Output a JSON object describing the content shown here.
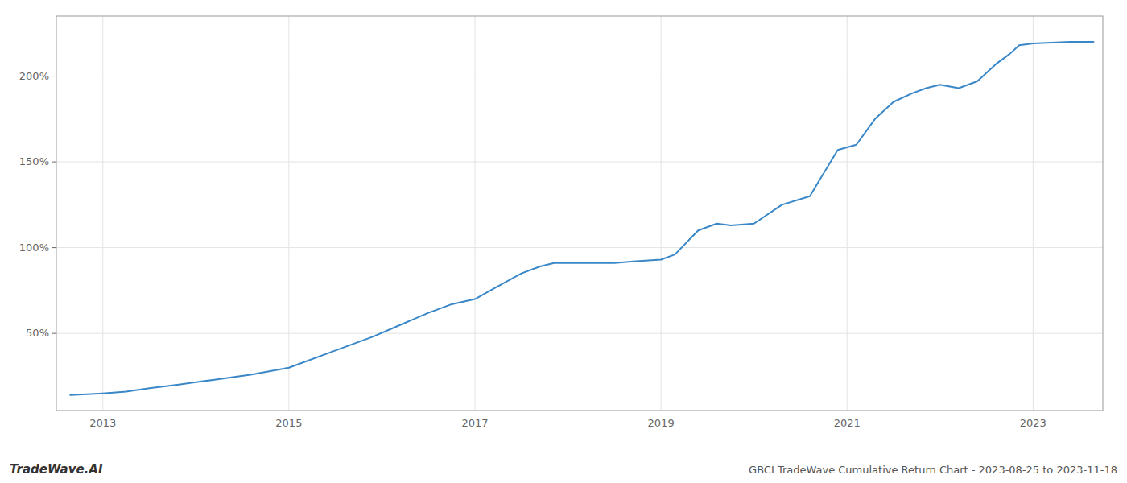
{
  "chart_data": {
    "type": "line",
    "title": "GBCI TradeWave Cumulative Return Chart - 2023-08-25 to 2023-11-18",
    "annotations": [
      "TradeWave.AI"
    ],
    "color": "#3a87c8",
    "grid": true,
    "x": [
      2012.65,
      2013.0,
      2013.25,
      2013.5,
      2013.8,
      2014.2,
      2014.6,
      2015.0,
      2015.5,
      2015.9,
      2016.2,
      2016.5,
      2016.75,
      2017.0,
      2017.2,
      2017.5,
      2017.7,
      2017.85,
      2018.0,
      2018.2,
      2018.5,
      2018.7,
      2019.0,
      2019.15,
      2019.4,
      2019.6,
      2019.75,
      2020.0,
      2020.3,
      2020.6,
      2020.9,
      2021.1,
      2021.3,
      2021.5,
      2021.7,
      2021.85,
      2022.0,
      2022.2,
      2022.4,
      2022.6,
      2022.75,
      2022.85,
      2023.0,
      2023.4,
      2023.65
    ],
    "values": [
      14,
      15,
      16,
      18,
      20,
      23,
      26,
      30,
      40,
      48,
      55,
      62,
      67,
      70,
      76,
      85,
      89,
      91,
      91,
      91,
      91,
      92,
      93,
      96,
      110,
      114,
      113,
      114,
      125,
      130,
      157,
      160,
      175,
      185,
      190,
      193,
      195,
      193,
      197,
      207,
      213,
      218,
      219,
      220,
      220
    ],
    "xlim": [
      2012.5,
      2023.75
    ],
    "ylim": [
      5,
      235
    ],
    "xticks": [
      2013,
      2015,
      2017,
      2019,
      2021,
      2023
    ],
    "yticks": [
      {
        "value": 50,
        "label": "50%"
      },
      {
        "value": 100,
        "label": "100%"
      },
      {
        "value": 150,
        "label": "150%"
      },
      {
        "value": 200,
        "label": "200%"
      }
    ]
  }
}
